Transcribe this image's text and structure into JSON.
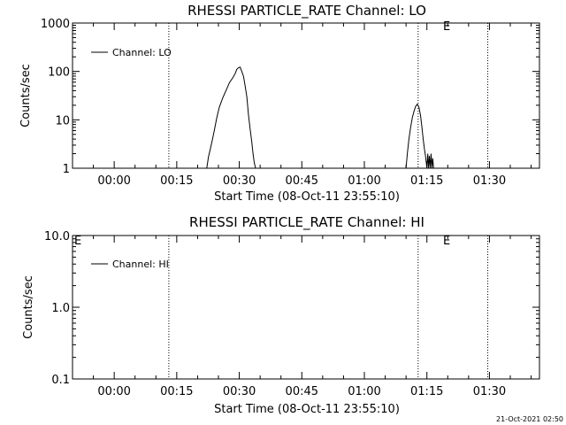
{
  "stamp": "21-Oct-2021 02:50",
  "chart_data": [
    {
      "type": "line",
      "title": "RHESSI PARTICLE_RATE Channel: LO",
      "xlabel": "Start Time (08-Oct-11 23:55:10)",
      "ylabel": "Counts/sec",
      "yscale": "log",
      "xlim_minutes": [
        -5,
        107
      ],
      "ylim": [
        1,
        1000
      ],
      "x_ticks": [
        {
          "minutes": 5,
          "label": "00:00"
        },
        {
          "minutes": 20,
          "label": "00:15"
        },
        {
          "minutes": 35,
          "label": "00:30"
        },
        {
          "minutes": 50,
          "label": "00:45"
        },
        {
          "minutes": 65,
          "label": "01:00"
        },
        {
          "minutes": 80,
          "label": "01:15"
        },
        {
          "minutes": 95,
          "label": "01:30"
        }
      ],
      "y_ticks": [
        {
          "value": 1,
          "label": "1"
        },
        {
          "value": 10,
          "label": "10"
        },
        {
          "value": 100,
          "label": "100"
        },
        {
          "value": 1000,
          "label": "1000"
        }
      ],
      "vlines_minutes": [
        18.1,
        77.9,
        94.6
      ],
      "vline_label": {
        "minutes": 77.9,
        "text": "E"
      },
      "corner_label": "",
      "legend": {
        "label": "Channel: LO",
        "position": "top-left"
      },
      "series": [
        {
          "name": "Channel: LO",
          "x": [
            27.2,
            27.6,
            28.0,
            28.4,
            29.0,
            29.6,
            30.2,
            31.0,
            31.8,
            32.6,
            33.4,
            34.0,
            34.4,
            34.8,
            35.2,
            35.6,
            36.0,
            36.4,
            36.8,
            37.2,
            37.6,
            38.0,
            38.3,
            38.6,
            38.9
          ],
          "y": [
            1,
            1.7,
            2.4,
            3.4,
            6,
            11,
            18,
            28,
            40,
            58,
            73,
            90,
            110,
            119,
            123,
            100,
            80,
            50,
            30,
            13,
            6.5,
            3.5,
            2,
            1.3,
            1
          ]
        },
        {
          "name": "Channel: LO",
          "x": [
            75.0,
            75.3,
            75.7,
            76.1,
            76.5,
            76.9,
            77.3,
            77.7,
            78.1,
            78.5,
            78.8,
            79.1,
            79.4,
            79.7,
            80.0,
            80.2,
            80.4,
            80.6,
            80.8,
            81.0,
            81.2,
            81.4,
            81.6,
            81.8
          ],
          "y": [
            1,
            2,
            4,
            7,
            11,
            15,
            19,
            21,
            18,
            12,
            7,
            4,
            2.5,
            1.7,
            1,
            2,
            1,
            1.8,
            1,
            2,
            1,
            1.6,
            1,
            1
          ]
        }
      ]
    },
    {
      "type": "line",
      "title": "RHESSI PARTICLE_RATE Channel: HI",
      "xlabel": "Start Time (08-Oct-11 23:55:10)",
      "ylabel": "Counts/sec",
      "yscale": "log",
      "xlim_minutes": [
        -5,
        107
      ],
      "ylim": [
        0.1,
        10
      ],
      "x_ticks": [
        {
          "minutes": 5,
          "label": "00:00"
        },
        {
          "minutes": 20,
          "label": "00:15"
        },
        {
          "minutes": 35,
          "label": "00:30"
        },
        {
          "minutes": 50,
          "label": "00:45"
        },
        {
          "minutes": 65,
          "label": "01:00"
        },
        {
          "minutes": 80,
          "label": "01:15"
        },
        {
          "minutes": 95,
          "label": "01:30"
        }
      ],
      "y_ticks": [
        {
          "value": 0.1,
          "label": "0.1"
        },
        {
          "value": 1,
          "label": "1.0"
        },
        {
          "value": 10,
          "label": "10.0"
        }
      ],
      "vlines_minutes": [
        18.1,
        77.9,
        94.6
      ],
      "vline_label": {
        "minutes": 77.9,
        "text": "E"
      },
      "corner_label": "E",
      "legend": {
        "label": "Channel: HI",
        "position": "top-left"
      },
      "series": []
    }
  ]
}
